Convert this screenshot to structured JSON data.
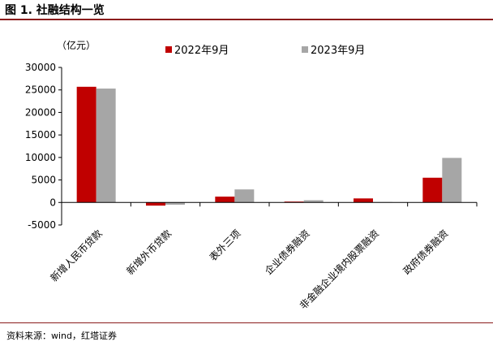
{
  "figure_title": "图 1. 社融结构一览",
  "source_text": "资料来源：wind，红塔证券",
  "chart_data": {
    "type": "bar",
    "title": "",
    "unit_label": "（亿元）",
    "categories": [
      "新增人民币贷款",
      "新增外币贷款",
      "表外三项",
      "企业债券融资",
      "非金融企业境内股票融资",
      "政府债券融资"
    ],
    "series": [
      {
        "name": "2022年9月",
        "color": "#c00000",
        "values": [
          25700,
          -700,
          1300,
          200,
          900,
          5500
        ]
      },
      {
        "name": "2023年9月",
        "color": "#a6a6a6",
        "values": [
          25300,
          -500,
          2900,
          500,
          100,
          9900
        ]
      }
    ],
    "ylim": [
      -5000,
      30000
    ],
    "yticks": [
      -5000,
      0,
      5000,
      10000,
      15000,
      20000,
      25000,
      30000
    ],
    "ytick_labels": [
      "-5000",
      "0",
      "5000",
      "10000",
      "15000",
      "20000",
      "25000",
      "30000"
    ],
    "grid": false,
    "legend_position": "top"
  }
}
